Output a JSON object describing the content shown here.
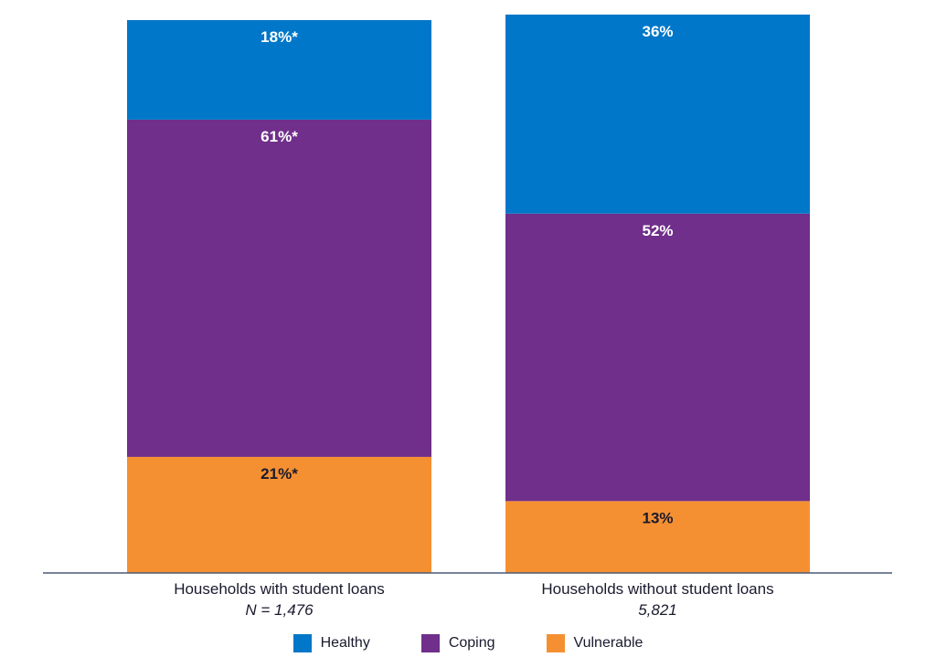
{
  "chart_data": {
    "type": "bar",
    "stacked": true,
    "orientation": "vertical",
    "categories": [
      "Households with student loans",
      "Households without student loans"
    ],
    "category_notes": [
      "N = 1,476",
      "5,821"
    ],
    "series": [
      {
        "name": "Vulnerable",
        "color": "#f59032",
        "label_color": "#1a1a2e",
        "values": [
          21,
          13
        ],
        "labels": [
          "21%*",
          "13%"
        ]
      },
      {
        "name": "Coping",
        "color": "#6f2f8a",
        "label_color": "#ffffff",
        "values": [
          61,
          52
        ],
        "labels": [
          "61%*",
          "52%"
        ]
      },
      {
        "name": "Healthy",
        "color": "#0077c8",
        "label_color": "#ffffff",
        "values": [
          18,
          36
        ],
        "labels": [
          "18%*",
          "36%"
        ]
      }
    ],
    "ylim": [
      0,
      100
    ],
    "grid": false,
    "legend_position": "bottom-center",
    "title": "",
    "xlabel": "",
    "ylabel": ""
  },
  "legend": {
    "items": [
      {
        "label": "Healthy",
        "color": "#0077c8"
      },
      {
        "label": "Coping",
        "color": "#6f2f8a"
      },
      {
        "label": "Vulnerable",
        "color": "#f59032"
      }
    ]
  },
  "colors": {
    "axis": "#4a5a78",
    "text": "#1a1a2e"
  }
}
